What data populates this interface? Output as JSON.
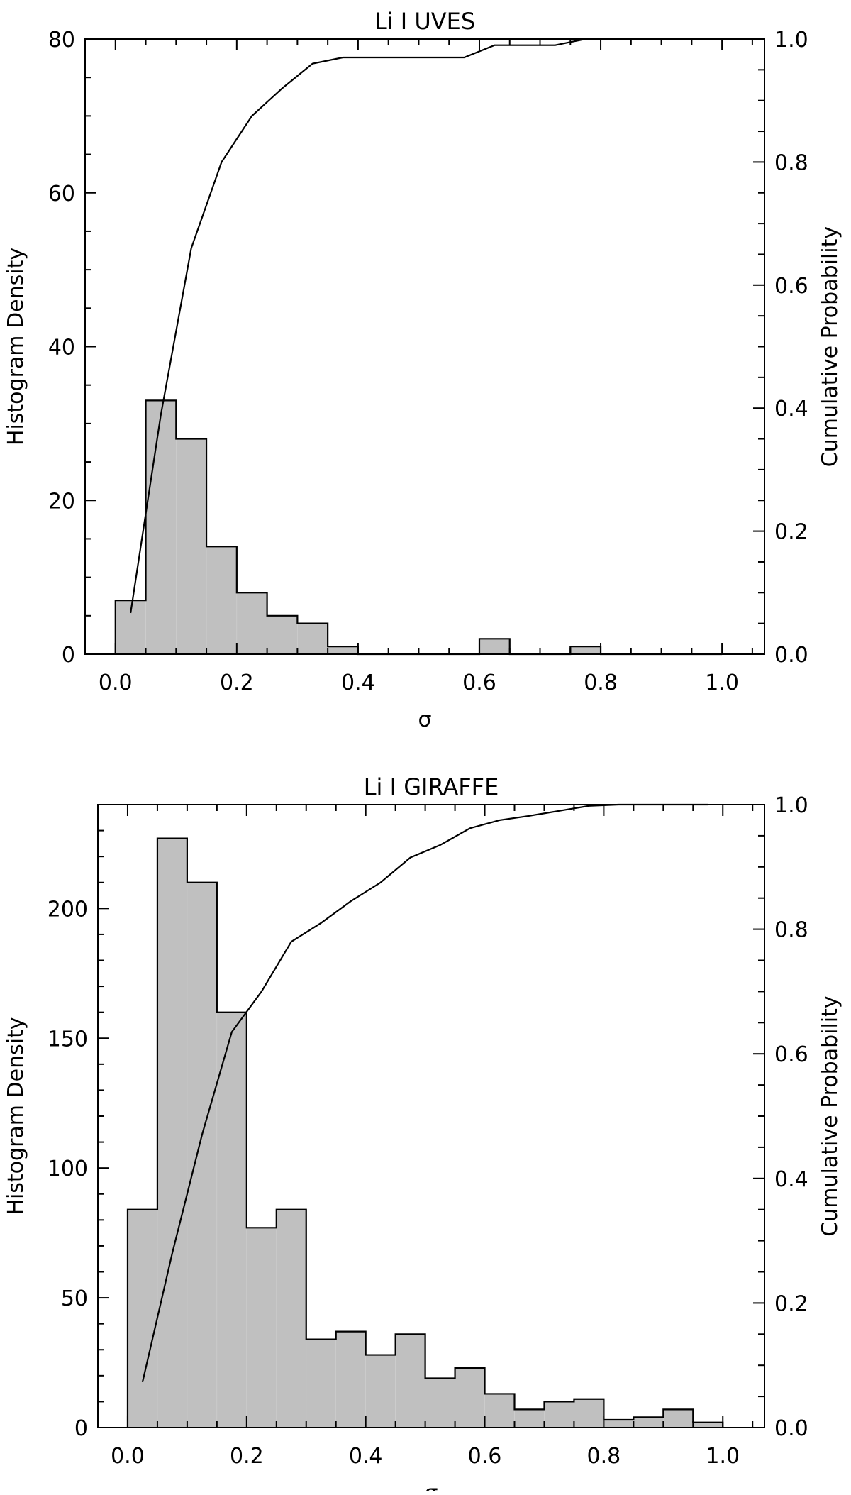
{
  "chart_data": [
    {
      "type": "bar",
      "title": "Li I UVES",
      "xlabel": "σ",
      "ylabel": "Histogram Density",
      "y2label": "Cumulative Probability",
      "xlim": [
        -0.05,
        1.07
      ],
      "ylim": [
        0,
        80
      ],
      "y2lim": [
        0,
        1
      ],
      "grid": false,
      "x_ticks": [
        "0.0",
        "0.2",
        "0.4",
        "0.6",
        "0.8",
        "1.0"
      ],
      "y_ticks": [
        "0",
        "20",
        "40",
        "60",
        "80"
      ],
      "y2_ticks": [
        "0.0",
        "0.2",
        "0.4",
        "0.6",
        "0.8",
        "1.0"
      ],
      "bin_edges": [
        0.0,
        0.05,
        0.1,
        0.15,
        0.2,
        0.25,
        0.3,
        0.35,
        0.4,
        0.45,
        0.5,
        0.55,
        0.6,
        0.65,
        0.7,
        0.75,
        0.8,
        0.85,
        0.9,
        0.95,
        1.0
      ],
      "series": [
        {
          "type": "histogram",
          "values": [
            7,
            33,
            28,
            14,
            8,
            5,
            4,
            1,
            0,
            0,
            0,
            0,
            2,
            0,
            0,
            1,
            0,
            0,
            0,
            0
          ]
        },
        {
          "type": "line",
          "axis": "y2",
          "x": [
            0.025,
            0.075,
            0.125,
            0.175,
            0.225,
            0.275,
            0.325,
            0.375,
            0.425,
            0.475,
            0.525,
            0.575,
            0.625,
            0.675,
            0.725,
            0.775,
            0.825,
            0.875,
            0.925,
            0.975
          ],
          "y": [
            0.067,
            0.39,
            0.66,
            0.8,
            0.875,
            0.92,
            0.96,
            0.97,
            0.97,
            0.97,
            0.97,
            0.97,
            0.99,
            0.99,
            0.99,
            1.0,
            1.0,
            1.0,
            1.0,
            1.0
          ]
        }
      ]
    },
    {
      "type": "bar",
      "title": "Li I GIRAFFE",
      "xlabel": "σ",
      "ylabel": "Histogram Density",
      "y2label": "Cumulative Probability",
      "xlim": [
        -0.05,
        1.07
      ],
      "ylim": [
        0,
        240
      ],
      "y2lim": [
        0,
        1
      ],
      "grid": false,
      "x_ticks": [
        "0.0",
        "0.2",
        "0.4",
        "0.6",
        "0.8",
        "1.0"
      ],
      "y_ticks": [
        "0",
        "50",
        "100",
        "150",
        "200"
      ],
      "y2_ticks": [
        "0.0",
        "0.2",
        "0.4",
        "0.6",
        "0.8",
        "1.0"
      ],
      "bin_edges": [
        0.0,
        0.05,
        0.1,
        0.15,
        0.2,
        0.25,
        0.3,
        0.35,
        0.4,
        0.45,
        0.5,
        0.55,
        0.6,
        0.65,
        0.7,
        0.75,
        0.8,
        0.85,
        0.9,
        0.95,
        1.0
      ],
      "series": [
        {
          "type": "histogram",
          "values": [
            84,
            227,
            210,
            160,
            77,
            84,
            34,
            37,
            28,
            36,
            19,
            23,
            13,
            7,
            10,
            11,
            3,
            4,
            7,
            2
          ]
        },
        {
          "type": "line",
          "axis": "y2",
          "x": [
            0.025,
            0.075,
            0.125,
            0.175,
            0.225,
            0.275,
            0.325,
            0.375,
            0.425,
            0.475,
            0.525,
            0.575,
            0.625,
            0.675,
            0.725,
            0.775,
            0.825,
            0.875,
            0.925,
            0.975
          ],
          "y": [
            0.073,
            0.28,
            0.47,
            0.635,
            0.7,
            0.78,
            0.81,
            0.845,
            0.875,
            0.915,
            0.935,
            0.962,
            0.975,
            0.982,
            0.99,
            0.998,
            1.0,
            1.0,
            1.0,
            1.0
          ]
        }
      ]
    }
  ]
}
